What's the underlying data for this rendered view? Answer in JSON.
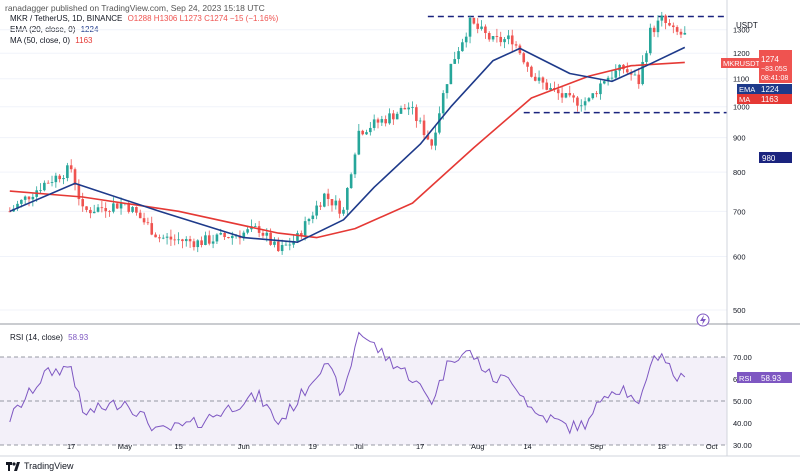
{
  "header": {
    "published": "ranadagger published on TradingView.com, Sep 24, 2023 15:18 UTC"
  },
  "legend": {
    "symbol": "MKR / TetherUS, 1D, BINANCE",
    "ohlc": "O1288 H1306 L1273 C1274 −15 (−1.16%)",
    "ema_label": "EMA (20, close, 0)",
    "ema_value": "1224",
    "ma_label": "MA (50, close, 0)",
    "ma_value": "1163",
    "rsi_label": "RSI (14, close)",
    "rsi_value": "58.93"
  },
  "axis": {
    "currency": "USDT",
    "price_ticks": [
      "1300",
      "1200",
      "1100",
      "1000",
      "900",
      "800",
      "700",
      "600",
      "500"
    ],
    "rsi_ticks": [
      "70.00",
      "60.00",
      "50.00",
      "40.00",
      "30.00"
    ],
    "x_ticks": [
      "17",
      "May",
      "15",
      "Jun",
      "19",
      "Jul",
      "17",
      "Aug",
      "14",
      "Sep",
      "18",
      "Oct"
    ]
  },
  "price_tags": {
    "symbol": "MKRUSDT",
    "last": "1274",
    "change": "−83.05S",
    "countdown": "08:41:08",
    "ema_tag": "EMA",
    "ema_val": "1224",
    "ma_tag": "MA",
    "ma_val": "1163",
    "support": "980",
    "rsi_tag": "RSI",
    "rsi_val": "58.93"
  },
  "footer": {
    "brand": "TradingView"
  },
  "colors": {
    "up": "#26a69a",
    "down": "#ef5350",
    "ema": "#1e3a8a",
    "ma": "#e53935",
    "rsi": "#7e57c2",
    "level": "#1a237e"
  },
  "chart_data": {
    "type": "candlestick",
    "x_range": [
      "2023-03-31",
      "2023-10-05"
    ],
    "ylim_price": [
      480,
      1400
    ],
    "ylim_rsi": [
      25,
      85
    ],
    "levels": [
      1360,
      980
    ],
    "anchors": [
      [
        "2023-04-01",
        700,
        42
      ],
      [
        "2023-04-10",
        770,
        62
      ],
      [
        "2023-04-17",
        810,
        66
      ],
      [
        "2023-04-20",
        700,
        44
      ],
      [
        "2023-05-01",
        720,
        50
      ],
      [
        "2023-05-10",
        640,
        36
      ],
      [
        "2023-05-20",
        630,
        40
      ],
      [
        "2023-06-01",
        650,
        50
      ],
      [
        "2023-06-05",
        660,
        52
      ],
      [
        "2023-06-10",
        610,
        40
      ],
      [
        "2023-06-15",
        640,
        50
      ],
      [
        "2023-06-22",
        740,
        68
      ],
      [
        "2023-06-27",
        700,
        52
      ],
      [
        "2023-07-01",
        920,
        82
      ],
      [
        "2023-07-08",
        960,
        70
      ],
      [
        "2023-07-14",
        1000,
        62
      ],
      [
        "2023-07-20",
        880,
        50
      ],
      [
        "2023-07-25",
        1150,
        70
      ],
      [
        "2023-07-30",
        1330,
        72
      ],
      [
        "2023-08-05",
        1250,
        60
      ],
      [
        "2023-08-10",
        1260,
        60
      ],
      [
        "2023-08-16",
        1100,
        44
      ],
      [
        "2023-08-20",
        1060,
        42
      ],
      [
        "2023-08-25",
        1020,
        38
      ],
      [
        "2023-08-30",
        1020,
        40
      ],
      [
        "2023-09-03",
        1100,
        54
      ],
      [
        "2023-09-08",
        1140,
        56
      ],
      [
        "2023-09-12",
        1090,
        46
      ],
      [
        "2023-09-15",
        1290,
        68
      ],
      [
        "2023-09-18",
        1345,
        72
      ],
      [
        "2023-09-21",
        1290,
        62
      ],
      [
        "2023-09-24",
        1274,
        58.9
      ]
    ],
    "ema_series": [
      [
        "2023-04-01",
        700
      ],
      [
        "2023-04-18",
        770
      ],
      [
        "2023-05-10",
        700
      ],
      [
        "2023-06-01",
        640
      ],
      [
        "2023-06-15",
        630
      ],
      [
        "2023-06-27",
        680
      ],
      [
        "2023-07-05",
        760
      ],
      [
        "2023-07-17",
        880
      ],
      [
        "2023-07-25",
        1000
      ],
      [
        "2023-08-05",
        1170
      ],
      [
        "2023-08-12",
        1220
      ],
      [
        "2023-08-25",
        1120
      ],
      [
        "2023-09-05",
        1090
      ],
      [
        "2023-09-14",
        1150
      ],
      [
        "2023-09-24",
        1224
      ]
    ],
    "ma_series": [
      [
        "2023-04-01",
        750
      ],
      [
        "2023-04-20",
        735
      ],
      [
        "2023-05-15",
        700
      ],
      [
        "2023-06-10",
        650
      ],
      [
        "2023-06-20",
        640
      ],
      [
        "2023-06-30",
        660
      ],
      [
        "2023-07-15",
        720
      ],
      [
        "2023-07-31",
        870
      ],
      [
        "2023-08-15",
        1030
      ],
      [
        "2023-08-30",
        1110
      ],
      [
        "2023-09-10",
        1150
      ],
      [
        "2023-09-24",
        1163
      ]
    ]
  }
}
